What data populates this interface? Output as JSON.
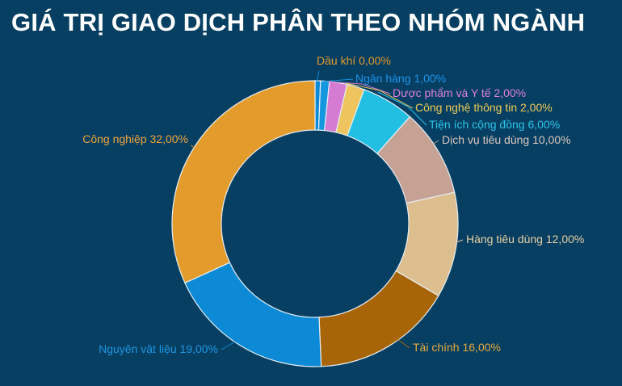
{
  "colors": {
    "background": "#063F62",
    "title": "#FFFFFF",
    "separator": "#E6EEF3"
  },
  "chart_data": {
    "type": "pie",
    "variant": "donut",
    "title": "GIÁ TRỊ GIAO DỊCH PHÂN THEO NHÓM NGÀNH",
    "unit": "%",
    "legend": "none",
    "grid": false,
    "slices": [
      {
        "label": "Dầu khí 0,00%",
        "value": 0.0,
        "color": "#0A8BD9",
        "text_color": "#E49A2C"
      },
      {
        "label": "Ngân hàng 1,00%",
        "value": 1.0,
        "color": "#1597E0",
        "text_color": "#1C93E8"
      },
      {
        "label": "Dược phẩm và Y tế 2,00%",
        "value": 2.0,
        "color": "#D57BD2",
        "text_color": "#E07FDC"
      },
      {
        "label": "Công nghệ thông tin 2,00%",
        "value": 2.0,
        "color": "#EDC45E",
        "text_color": "#EFCB55"
      },
      {
        "label": "Tiện ích cộng đồng 6,00%",
        "value": 6.0,
        "color": "#22BFE3",
        "text_color": "#2CC5EA"
      },
      {
        "label": "Dịch vụ tiêu dùng 10,00%",
        "value": 10.0,
        "color": "#C5A294",
        "text_color": "#DCC8BE"
      },
      {
        "label": "Hàng tiêu dùng 12,00%",
        "value": 12.0,
        "color": "#DDBE8E",
        "text_color": "#E9CFA2"
      },
      {
        "label": "Tài chính 16,00%",
        "value": 16.0,
        "color": "#A86508",
        "text_color": "#E8A93C"
      },
      {
        "label": "Nguyên vật liệu 19,00%",
        "value": 19.0,
        "color": "#0C8AD6",
        "text_color": "#1E96E2"
      },
      {
        "label": "Công nghiệp 32,00%",
        "value": 32.0,
        "color": "#E39C2C",
        "text_color": "#F0A53A"
      }
    ]
  }
}
